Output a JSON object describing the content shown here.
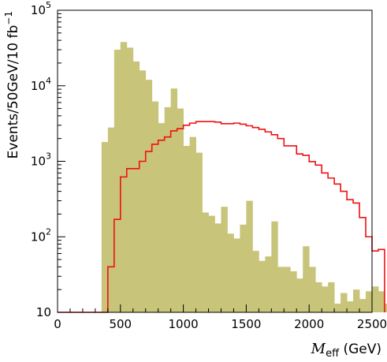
{
  "chart_data": {
    "type": "histogram",
    "title": "",
    "xlabel": {
      "symbol": "M",
      "subscript": "eff",
      "unit": " (GeV)"
    },
    "ylabel": {
      "main": "Events/50GeV/10 fb",
      "superscript": "−1"
    },
    "xlim": [
      0,
      2500
    ],
    "ylim": [
      10,
      100000
    ],
    "yscale": "log",
    "bin_width": 50,
    "grid": false,
    "legend": "none",
    "x_ticks": [
      {
        "value": 0,
        "label": "0"
      },
      {
        "value": 500,
        "label": "500"
      },
      {
        "value": 1000,
        "label": "1000"
      },
      {
        "value": 1500,
        "label": "1500"
      },
      {
        "value": 2000,
        "label": "2000"
      },
      {
        "value": 2500,
        "label": "2500"
      }
    ],
    "y_ticks": [
      {
        "value": 10,
        "base": "10",
        "exp": ""
      },
      {
        "value": 100,
        "base": "10",
        "exp": "2"
      },
      {
        "value": 1000,
        "base": "10",
        "exp": "3"
      },
      {
        "value": 10000,
        "base": "10",
        "exp": "4"
      },
      {
        "value": 100000,
        "base": "10",
        "exp": "5"
      }
    ],
    "series": [
      {
        "style": "filled",
        "color": "#c8c47a",
        "bin_edges_start": 350,
        "values": [
          1800,
          2800,
          30000,
          38000,
          32000,
          21000,
          16000,
          12000,
          6200,
          3200,
          5200,
          9200,
          5000,
          1600,
          2100,
          1300,
          210,
          190,
          150,
          250,
          110,
          95,
          145,
          300,
          65,
          48,
          55,
          160,
          40,
          40,
          35,
          28,
          75,
          40,
          25,
          22,
          25,
          13,
          18,
          14,
          20,
          15,
          19,
          22,
          19,
          13,
          14
        ]
      },
      {
        "style": "step",
        "color": "#ee1111",
        "bin_edges_start": 0,
        "values": [
          10,
          10,
          10,
          10,
          10,
          10,
          10,
          10,
          40,
          170,
          620,
          800,
          800,
          1000,
          1350,
          1680,
          1900,
          2100,
          2530,
          2700,
          3000,
          3200,
          3350,
          3350,
          3350,
          3300,
          3150,
          3150,
          3200,
          3100,
          2950,
          2800,
          2650,
          2450,
          2250,
          2000,
          1600,
          1600,
          1250,
          1200,
          990,
          890,
          700,
          600,
          500,
          400,
          310,
          280,
          180,
          100,
          65,
          68
        ]
      }
    ]
  }
}
